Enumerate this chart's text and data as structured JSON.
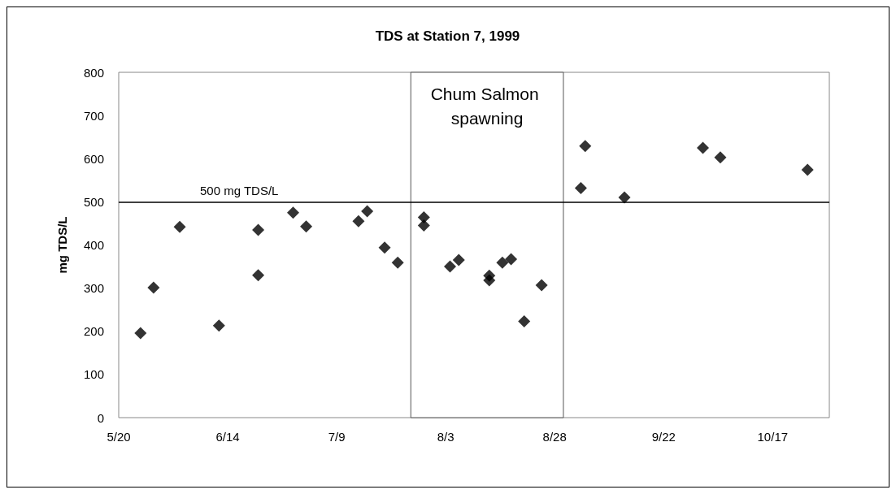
{
  "chart_data": {
    "type": "scatter",
    "title": "TDS at Station 7, 1999",
    "ylabel": "mg TDS/L",
    "marker": "diamond",
    "grid": false,
    "x": [
      "1999-05-25",
      "1999-05-28",
      "1999-06-03",
      "1999-06-12",
      "1999-06-21",
      "1999-06-21",
      "1999-06-29",
      "1999-07-02",
      "1999-07-14",
      "1999-07-16",
      "1999-07-20",
      "1999-07-23",
      "1999-07-29",
      "1999-07-29",
      "1999-08-04",
      "1999-08-06",
      "1999-08-13",
      "1999-08-13",
      "1999-08-16",
      "1999-08-18",
      "1999-08-21",
      "1999-08-25",
      "1999-09-03",
      "1999-09-04",
      "1999-09-13",
      "1999-10-01",
      "1999-10-05",
      "1999-10-25"
    ],
    "series": [
      {
        "color": "#000000",
        "values": [
          196,
          301,
          442,
          213,
          330,
          435,
          475,
          443,
          455,
          478,
          394,
          359,
          464,
          445,
          350,
          365,
          329,
          318,
          359,
          367,
          223,
          307,
          532,
          629,
          510,
          625,
          603,
          574
        ]
      }
    ],
    "xlim": [
      "1999-05-20",
      "1999-10-30"
    ],
    "xticks": [
      {
        "value": "1999-05-20",
        "label": "5/20"
      },
      {
        "value": "1999-06-14",
        "label": "6/14"
      },
      {
        "value": "1999-07-09",
        "label": "7/9"
      },
      {
        "value": "1999-08-03",
        "label": "8/3"
      },
      {
        "value": "1999-08-28",
        "label": "8/28"
      },
      {
        "value": "1999-09-22",
        "label": "9/22"
      },
      {
        "value": "1999-10-17",
        "label": "10/17"
      }
    ],
    "ylim": [
      0,
      800
    ],
    "yticks": [
      0,
      100,
      200,
      300,
      400,
      500,
      600,
      700,
      800
    ],
    "ref_lines": [
      {
        "axis": "y",
        "value": 500,
        "label": "500 mg TDS/L",
        "color": "#000000"
      }
    ],
    "bands": [
      {
        "axis": "x",
        "from": "1999-07-26",
        "to": "1999-08-30",
        "label": "Chum Salmon spawning",
        "color": "#ffffff"
      }
    ]
  }
}
